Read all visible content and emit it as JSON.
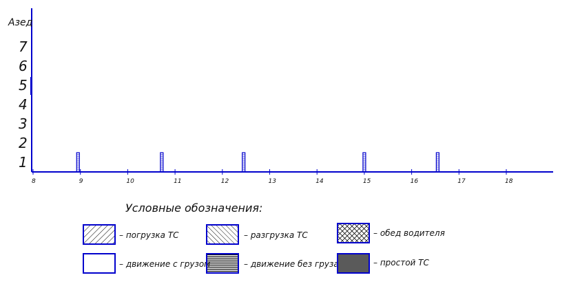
{
  "chart_data": {
    "type": "bar",
    "ylabel": "Азед",
    "y_ticks": [
      "1",
      "2",
      "3",
      "4",
      "5",
      "6",
      "7"
    ],
    "x_ticks": [
      "8",
      "9",
      "10",
      "11",
      "12",
      "13",
      "14",
      "15",
      "16",
      "17",
      "18"
    ],
    "xlim": [
      8,
      19
    ],
    "ylim": [
      0,
      8
    ],
    "bars": [
      {
        "x": 8.95,
        "y": 1
      },
      {
        "x": 10.72,
        "y": 1
      },
      {
        "x": 12.45,
        "y": 1
      },
      {
        "x": 15.0,
        "y": 1
      },
      {
        "x": 16.55,
        "y": 1
      }
    ],
    "grid": false,
    "colors": {
      "axis": "#0000cc",
      "bar": "#0000cc",
      "text": "#111111",
      "idle": "#5a5a5a"
    }
  },
  "legend": {
    "title": "Условные обозначения:",
    "items": [
      {
        "pattern": "hatch-right",
        "label": "– погрузка ТС"
      },
      {
        "pattern": "hatch-left",
        "label": "– разгрузка ТС"
      },
      {
        "pattern": "crosshatch",
        "label": "– обед водителя"
      },
      {
        "pattern": "empty",
        "label": "– движение с грузом"
      },
      {
        "pattern": "horizontal",
        "label": "– движение без груза"
      },
      {
        "pattern": "solid-grey",
        "label": "– простой ТС"
      }
    ]
  }
}
